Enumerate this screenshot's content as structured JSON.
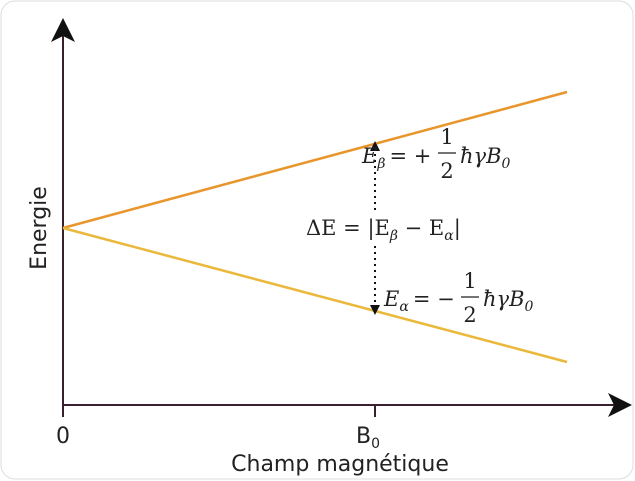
{
  "axes": {
    "y_label": "Energie",
    "x_label": "Champ magnétique",
    "origin": "0",
    "b0": {
      "base": "B",
      "sub": "0"
    }
  },
  "equations": {
    "beta": {
      "lhs": "E",
      "lhs_sub": "β",
      "sign": "= +",
      "num": "1",
      "den": "2",
      "rest": "ħγB",
      "rest_sub": "0"
    },
    "delta": {
      "a": "ΔE = |E",
      "a_sub": "β",
      "b": " − E",
      "b_sub": "α",
      "c": "|"
    },
    "alpha": {
      "lhs": "E",
      "lhs_sub": "α",
      "sign": "= −",
      "num": "1",
      "den": "2",
      "rest": "ħγB",
      "rest_sub": "0"
    }
  }
}
